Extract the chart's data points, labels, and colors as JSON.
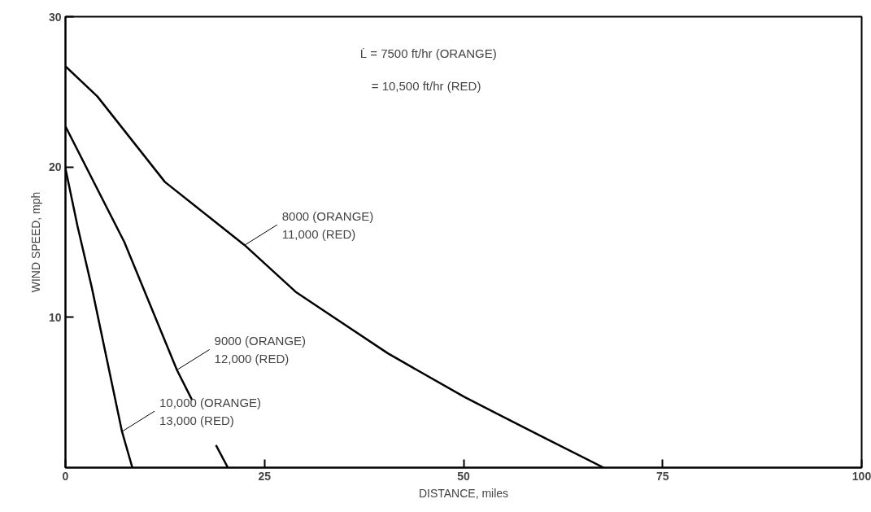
{
  "chart_data": {
    "type": "line",
    "xlabel": "DISTANCE, miles",
    "ylabel": "WIND SPEED, mph",
    "xlim": [
      0,
      100
    ],
    "ylim": [
      0,
      30
    ],
    "xticks": [
      0,
      25,
      50,
      75,
      100
    ],
    "yticks": [
      10,
      20,
      30
    ],
    "grid": false,
    "line_style": "solid",
    "series": [
      {
        "color": "#000000",
        "x": [
          0,
          4,
          12.5,
          22.5,
          28.9,
          32,
          40.5,
          50.1,
          59.7,
          67.6
        ],
        "values": [
          26.7,
          24.7,
          19.0,
          14.8,
          11.7,
          10.6,
          7.6,
          4.7,
          2.1,
          0
        ]
      },
      {
        "color": "#000000",
        "x": [
          0,
          7.4,
          14.0,
          15.9,
          17.4,
          18.9,
          20.4
        ],
        "values": [
          22.7,
          15.0,
          6.5,
          4.5,
          null,
          1.5,
          0
        ]
      },
      {
        "color": "#000000",
        "x": [
          0,
          1.5,
          3.3,
          7.1,
          8.4
        ],
        "values": [
          19.9,
          16.1,
          12.0,
          2.4,
          0
        ]
      }
    ],
    "annotations": [
      "L̇ = 7500 ft/hr (ORANGE)",
      "= 10,500 ft/hr (RED)",
      {
        "text": "8000 (ORANGE)\n11,000 (RED)",
        "x": 22.5,
        "y": 14.8
      },
      {
        "text": "9000 (ORANGE)\n12,000 (RED)",
        "x": 14.0,
        "y": 6.5
      },
      {
        "text": "10,000 (ORANGE)\n13,000 (RED)",
        "x": 7.1,
        "y": 2.4
      }
    ]
  }
}
